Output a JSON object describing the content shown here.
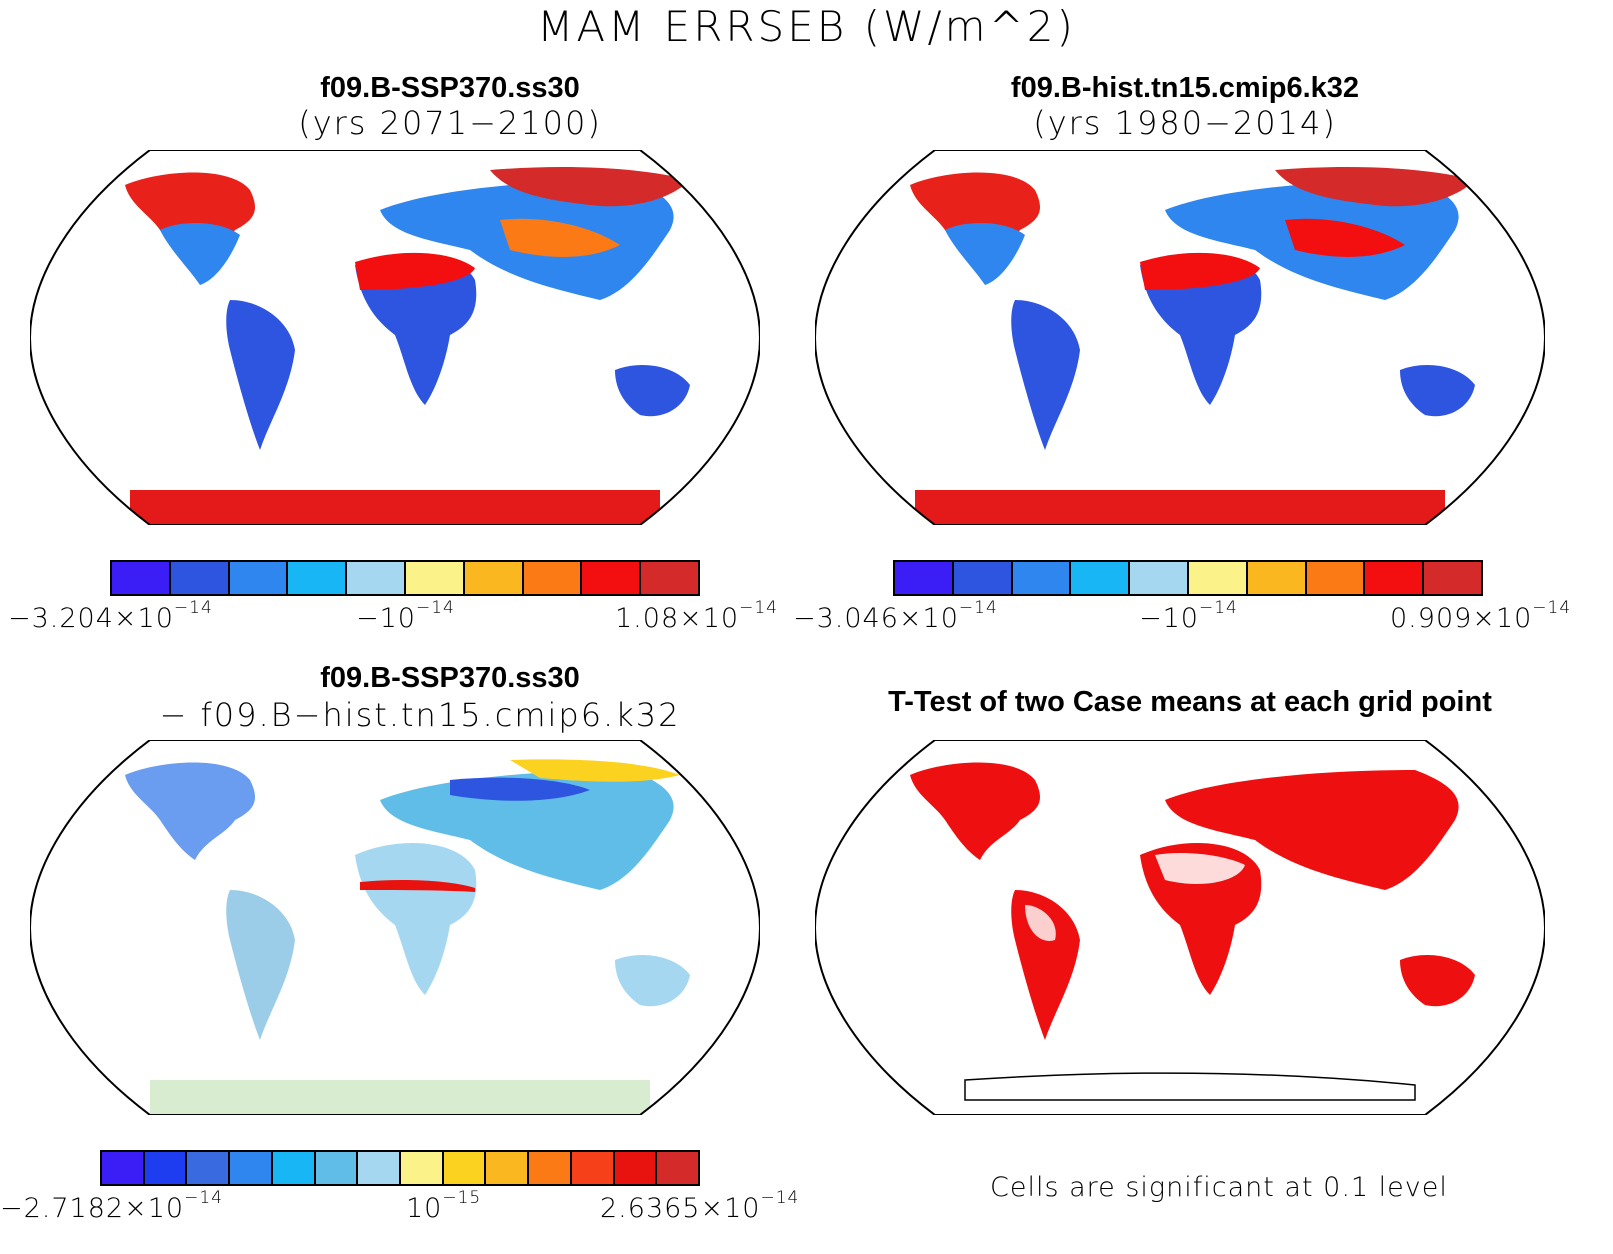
{
  "title": "MAM ERRSEB (W/m^2)",
  "panels": [
    {
      "title": "f09.B-SSP370.ss30",
      "subtitle": "(yrs 2071−2100)",
      "colorbar": {
        "colors": [
          "#3a1ef5",
          "#2e55e0",
          "#2f86ee",
          "#19b6f5",
          "#a5d8f0",
          "#fbf28a",
          "#fbb71f",
          "#fb7a15",
          "#f30f10",
          "#d42a2a"
        ],
        "labels": {
          "min": {
            "mantissa": "−3.204×10",
            "exp": "−14"
          },
          "mid": {
            "mantissa": "−10",
            "exp": "−14"
          },
          "max": {
            "mantissa": "1.08×10",
            "exp": "−14"
          }
        }
      }
    },
    {
      "title": "f09.B-hist.tn15.cmip6.k32",
      "subtitle": "(yrs 1980−2014)",
      "colorbar": {
        "colors": [
          "#3a1ef5",
          "#2e55e0",
          "#2f86ee",
          "#19b6f5",
          "#a5d8f0",
          "#fbf28a",
          "#fbb71f",
          "#fb7a15",
          "#f30f10",
          "#d42a2a"
        ],
        "labels": {
          "min": {
            "mantissa": "−3.046×10",
            "exp": "−14"
          },
          "mid": {
            "mantissa": "−10",
            "exp": "−14"
          },
          "max": {
            "mantissa": "0.909×10",
            "exp": "−14"
          }
        }
      }
    },
    {
      "title": "f09.B-SSP370.ss30",
      "subtitle": "− f09.B−hist.tn15.cmip6.k32",
      "colorbar": {
        "colors": [
          "#3a1ef5",
          "#1e3cf0",
          "#3a6ae0",
          "#2f86ee",
          "#19b6f5",
          "#5fbde8",
          "#a5d8f0",
          "#fbf28a",
          "#fbd220",
          "#fbb71f",
          "#fb7a15",
          "#f6401a",
          "#e8120f",
          "#d42a2a"
        ],
        "labels": {
          "min": {
            "mantissa": "−2.7182×10",
            "exp": "−14"
          },
          "mid": {
            "mantissa": "10",
            "exp": "−15"
          },
          "max": {
            "mantissa": "2.6365×10",
            "exp": "−14"
          }
        }
      }
    },
    {
      "title": "T-Test of two Case means at each grid point",
      "note": "Cells are significant at 0.1 level"
    }
  ]
}
